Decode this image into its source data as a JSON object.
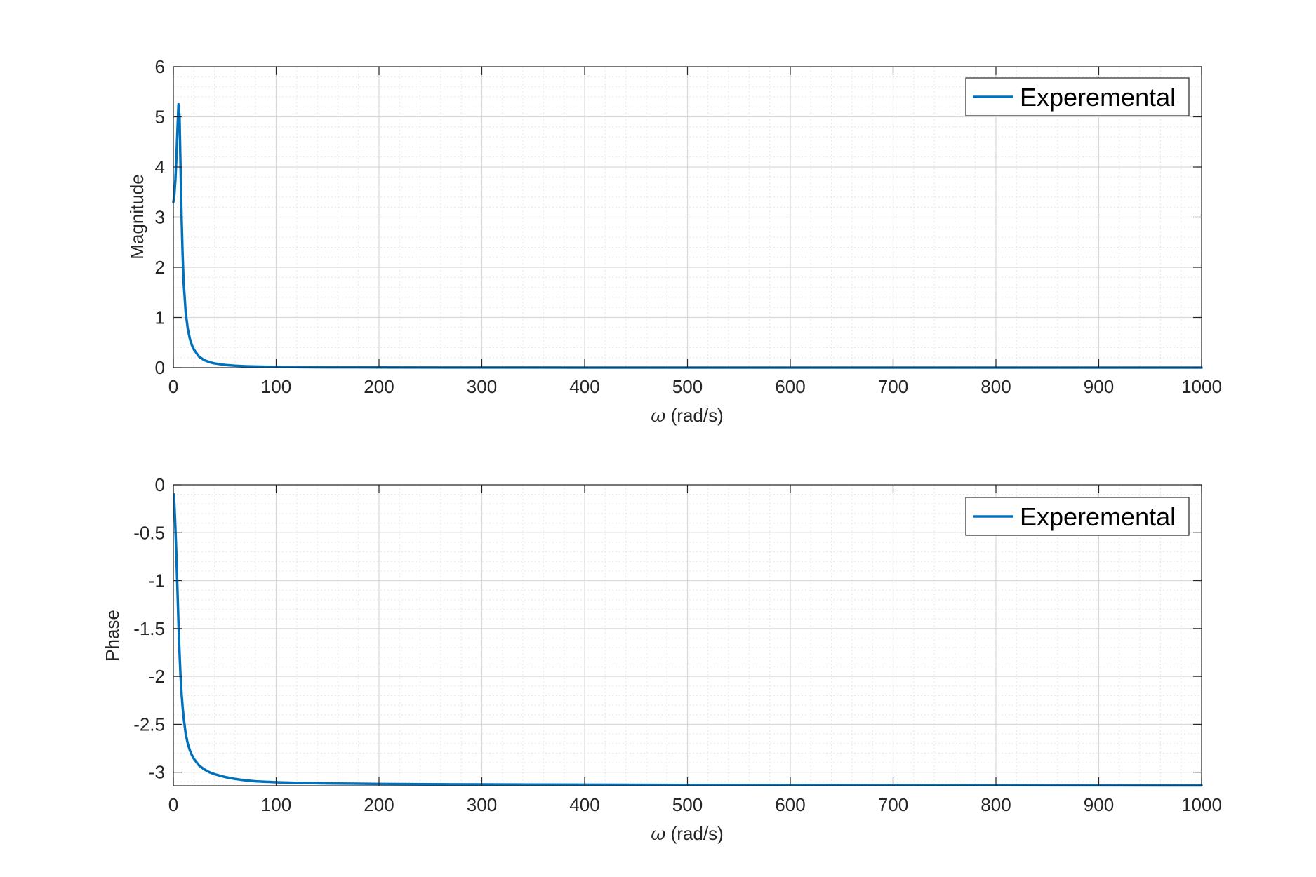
{
  "chart_data": [
    {
      "type": "line",
      "xlabel_symbol": "ω",
      "xlabel_unit": " (rad/s)",
      "ylabel": "Magnitude",
      "xlim": [
        0,
        1000
      ],
      "ylim": [
        0,
        6
      ],
      "xticks": [
        0,
        100,
        200,
        300,
        400,
        500,
        600,
        700,
        800,
        900,
        1000
      ],
      "yticks": [
        0,
        1,
        2,
        3,
        4,
        5,
        6
      ],
      "xtick_labels": [
        "0",
        "100",
        "200",
        "300",
        "400",
        "500",
        "600",
        "700",
        "800",
        "900",
        "1000"
      ],
      "ytick_labels": [
        "0",
        "1",
        "2",
        "3",
        "4",
        "5",
        "6"
      ],
      "grid": "major and minor",
      "legend": {
        "position": "top-right",
        "entries": [
          "Experemental"
        ]
      },
      "series": [
        {
          "name": "Experemental",
          "color": "#0072bd",
          "x": [
            0,
            1,
            2,
            3,
            4,
            5,
            6,
            7,
            8,
            9,
            10,
            12,
            14,
            16,
            18,
            20,
            25,
            30,
            35,
            40,
            50,
            60,
            70,
            80,
            100,
            125,
            150,
            200,
            300,
            400,
            500,
            600,
            700,
            800,
            900,
            1000
          ],
          "y": [
            3.3,
            3.45,
            3.75,
            4.2,
            4.75,
            5.25,
            5.0,
            4.0,
            3.0,
            2.25,
            1.7,
            1.1,
            0.78,
            0.58,
            0.45,
            0.36,
            0.22,
            0.15,
            0.11,
            0.085,
            0.055,
            0.038,
            0.028,
            0.022,
            0.014,
            0.009,
            0.006,
            0.0035,
            0.0015,
            0.0009,
            0.0006,
            0.0004,
            0.0003,
            0.00025,
            0.0002,
            0.00015
          ]
        }
      ]
    },
    {
      "type": "line",
      "xlabel_symbol": "ω",
      "xlabel_unit": " (rad/s)",
      "ylabel": "Phase",
      "xlim": [
        0,
        1000
      ],
      "ylim": [
        -3.1416,
        0
      ],
      "xticks": [
        0,
        100,
        200,
        300,
        400,
        500,
        600,
        700,
        800,
        900,
        1000
      ],
      "yticks": [
        0,
        -0.5,
        -1,
        -1.5,
        -2,
        -2.5,
        -3
      ],
      "xtick_labels": [
        "0",
        "100",
        "200",
        "300",
        "400",
        "500",
        "600",
        "700",
        "800",
        "900",
        "1000"
      ],
      "ytick_labels": [
        "0",
        "-0.5",
        "-1",
        "-1.5",
        "-2",
        "-2.5",
        "-3"
      ],
      "grid": "major and minor",
      "legend": {
        "position": "top-right",
        "entries": [
          "Experemental"
        ]
      },
      "series": [
        {
          "name": "Experemental",
          "color": "#0072bd",
          "x": [
            0.5,
            1,
            2,
            3,
            4,
            5,
            6,
            7,
            8,
            9,
            10,
            12,
            14,
            16,
            18,
            20,
            25,
            30,
            35,
            40,
            50,
            60,
            70,
            80,
            100,
            125,
            150,
            200,
            250,
            300,
            400,
            500,
            600,
            700,
            800,
            900,
            1000
          ],
          "y": [
            -0.1,
            -0.2,
            -0.45,
            -0.75,
            -1.1,
            -1.45,
            -1.75,
            -2.0,
            -2.18,
            -2.32,
            -2.43,
            -2.6,
            -2.7,
            -2.77,
            -2.82,
            -2.86,
            -2.93,
            -2.97,
            -3.0,
            -3.02,
            -3.05,
            -3.07,
            -3.085,
            -3.095,
            -3.105,
            -3.112,
            -3.117,
            -3.122,
            -3.125,
            -3.127,
            -3.13,
            -3.132,
            -3.134,
            -3.135,
            -3.136,
            -3.137,
            -3.138
          ]
        }
      ]
    }
  ]
}
